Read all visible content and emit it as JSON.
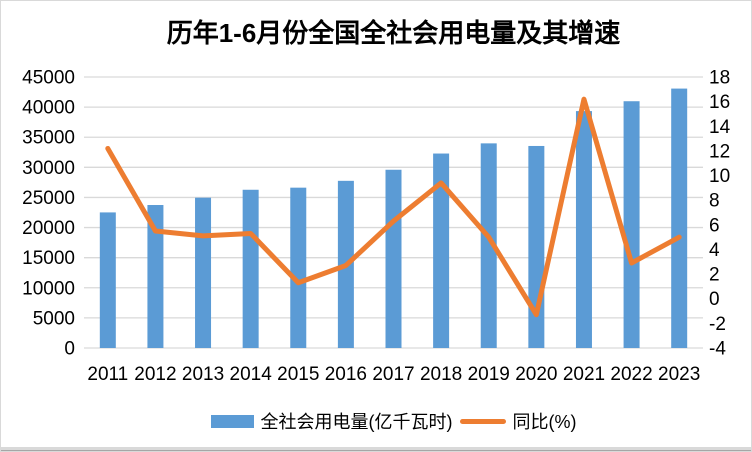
{
  "chart_data": {
    "type": "bar+line",
    "title": "历年1-6月份全国全社会用电量及其增速",
    "categories": [
      "2011",
      "2012",
      "2013",
      "2014",
      "2015",
      "2016",
      "2017",
      "2018",
      "2019",
      "2020",
      "2021",
      "2022",
      "2023"
    ],
    "series": [
      {
        "name": "全社会用电量(亿千瓦时)",
        "type": "bar",
        "axis": "left",
        "values": [
          22515,
          23744,
          24961,
          26276,
          26624,
          27759,
          29598,
          32291,
          33980,
          33547,
          39339,
          40977,
          43076
        ]
      },
      {
        "name": "同比(%)",
        "type": "line",
        "axis": "right",
        "values": [
          12.2,
          5.5,
          5.1,
          5.3,
          1.3,
          2.7,
          6.3,
          9.4,
          5.0,
          -1.3,
          16.2,
          2.9,
          5.0
        ]
      }
    ],
    "left_axis": {
      "min": 0,
      "max": 45000,
      "step": 5000
    },
    "right_axis": {
      "min": -4,
      "max": 18,
      "step": 2
    },
    "grid": "horizontal",
    "legend_position": "bottom",
    "colors": {
      "bar": "#5B9BD5",
      "line": "#ED7D31",
      "gridline": "#D9D9D9",
      "text": "#000000",
      "background": "#FFFFFF"
    }
  }
}
